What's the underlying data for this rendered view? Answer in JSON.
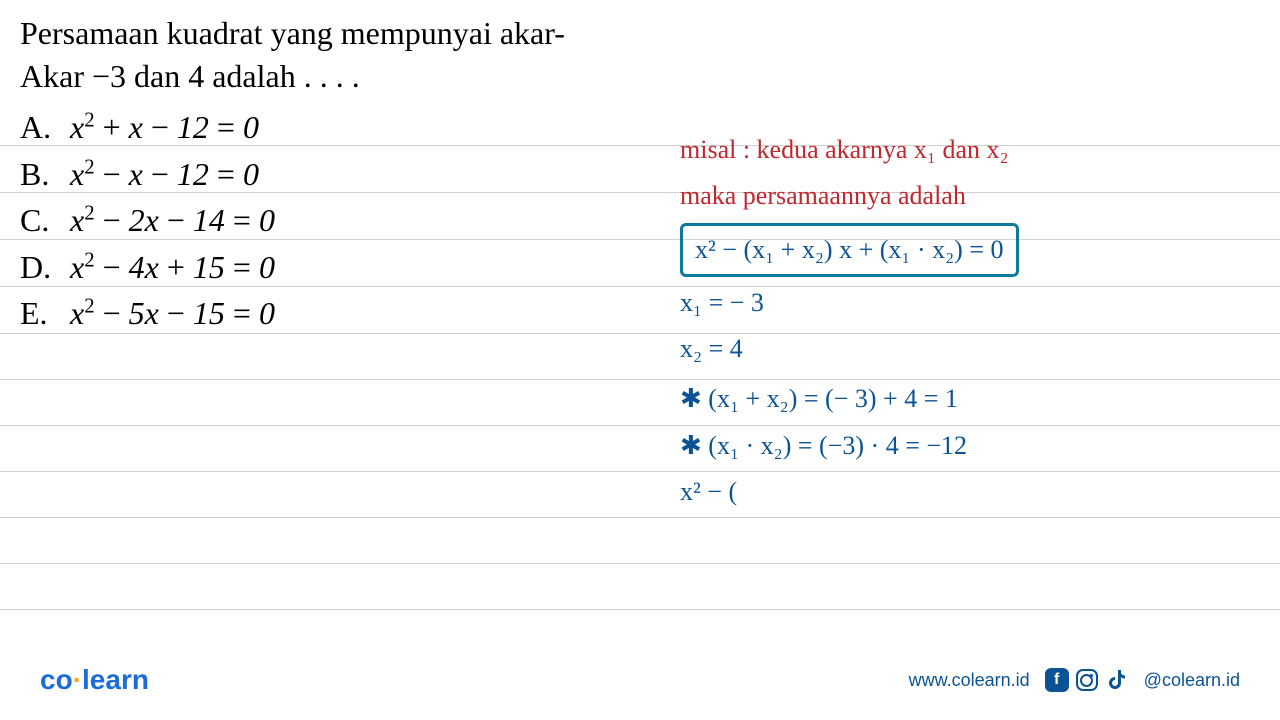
{
  "ruled_lines": {
    "color": "#d0d0d0",
    "positions": [
      145,
      192,
      239,
      286,
      333,
      379,
      425,
      471,
      517,
      563,
      609
    ]
  },
  "question": {
    "line1": "Persamaan kuadrat yang mempunyai akar-",
    "line2_prefix": "Akar ",
    "line2_math": "−3 dan 4",
    "line2_suffix": " adalah . . . .",
    "text_color": "#000000",
    "font_size": 32
  },
  "options": [
    {
      "letter": "A.",
      "equation": "x² + x − 12 = 0"
    },
    {
      "letter": "B.",
      "equation": "x² − x − 12 = 0"
    },
    {
      "letter": "C.",
      "equation": "x² − 2x − 14 = 0"
    },
    {
      "letter": "D.",
      "equation": "x² − 4x + 15 = 0"
    },
    {
      "letter": "E.",
      "equation": "x² − 5x − 15 = 0"
    }
  ],
  "work": {
    "red_color": "#c1272d",
    "blue_color": "#0b5394",
    "box_border_color": "#0b7a9e",
    "font_size": 26,
    "line1": "misal : kedua  akarnya  x₁ dan x₂",
    "line2": "maka    persamaannya  adalah",
    "boxed_formula": "x² − (x₁ + x₂) x  +  (x₁ · x₂) = 0",
    "line4": "x₁ = − 3",
    "line5": "x₂ = 4",
    "line6_prefix": "✱  (x₁ + x₂)  = (− 3) + 4   = 1",
    "line7_prefix": "✱   (x₁ · x₂)   = (−3) · 4   = −12",
    "line8": "x² − ("
  },
  "footer": {
    "logo_text_a": "co",
    "logo_dot": "·",
    "logo_text_b": "learn",
    "logo_color": "#1a6dd6",
    "dot_color": "#f5a623",
    "website": "www.colearn.id",
    "handle": "@colearn.id",
    "icon_color": "#0b5394"
  }
}
